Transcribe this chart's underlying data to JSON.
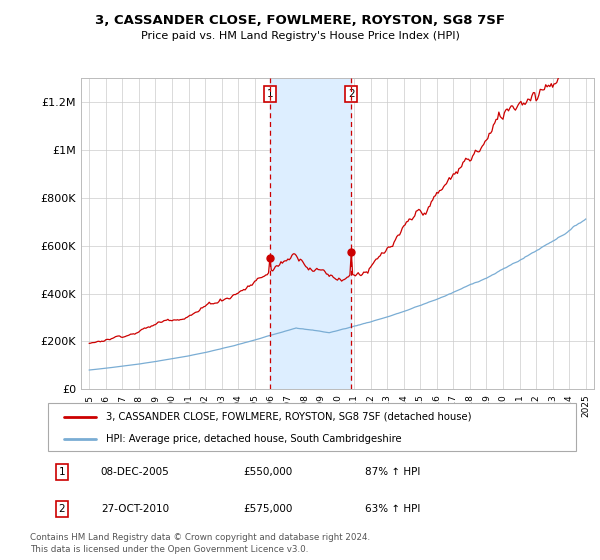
{
  "title": "3, CASSANDER CLOSE, FOWLMERE, ROYSTON, SG8 7SF",
  "subtitle": "Price paid vs. HM Land Registry's House Price Index (HPI)",
  "red_label": "3, CASSANDER CLOSE, FOWLMERE, ROYSTON, SG8 7SF (detached house)",
  "blue_label": "HPI: Average price, detached house, South Cambridgeshire",
  "sale1_date": "08-DEC-2005",
  "sale1_price": "£550,000",
  "sale1_pct": "87% ↑ HPI",
  "sale2_date": "27-OCT-2010",
  "sale2_price": "£575,000",
  "sale2_pct": "63% ↑ HPI",
  "footer": "Contains HM Land Registry data © Crown copyright and database right 2024.\nThis data is licensed under the Open Government Licence v3.0.",
  "ylim": [
    0,
    1300000
  ],
  "sale1_year": 2005.92,
  "sale2_year": 2010.82,
  "background_color": "#ffffff",
  "grid_color": "#cccccc",
  "red_color": "#cc0000",
  "blue_color": "#7aadd4",
  "shade_color": "#ddeeff",
  "marker_color": "#cc0000",
  "yticks": [
    0,
    200000,
    400000,
    600000,
    800000,
    1000000,
    1200000
  ],
  "ylabels": [
    "£0",
    "£200K",
    "£400K",
    "£600K",
    "£800K",
    "£1M",
    "£1.2M"
  ]
}
